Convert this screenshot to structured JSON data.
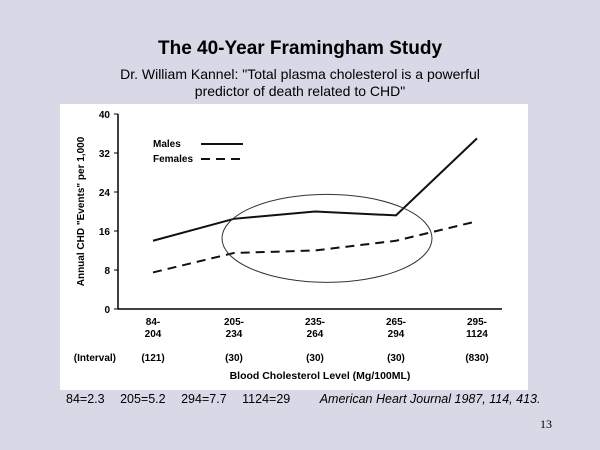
{
  "slide": {
    "title": "The 40-Year Framingham Study",
    "subtitle_line1": "Dr. William Kannel:  \"Total plasma cholesterol is a powerful",
    "subtitle_line2": "predictor of death related to CHD\"",
    "page_number": "13"
  },
  "footer": {
    "values": [
      "84=2.3",
      "205=5.2",
      "294=7.7",
      "1124=29"
    ],
    "citation": "American Heart Journal 1987, 114, 413."
  },
  "chart_data": {
    "type": "line",
    "categories": [
      "84-\n204",
      "205-\n234",
      "235-\n264",
      "265-\n294",
      "295-\n1124"
    ],
    "intervals": [
      "(121)",
      "(30)",
      "(30)",
      "(30)",
      "(830)"
    ],
    "interval_label": "(Interval)",
    "series": [
      {
        "name": "Males",
        "style": "solid",
        "x": [
          0,
          1,
          2,
          3,
          4
        ],
        "y": [
          14,
          18.5,
          20,
          19.2,
          35
        ]
      },
      {
        "name": "Females",
        "style": "dashed",
        "x": [
          0,
          1,
          2,
          3,
          4
        ],
        "y": [
          7.5,
          11.5,
          12,
          14,
          18
        ]
      }
    ],
    "xlabel": "Blood Cholesterol Level (Mg/100ML)",
    "ylabel": "Annual CHD \"Events\" per 1,000",
    "ylim": [
      0,
      40
    ],
    "yticks": [
      0,
      8,
      16,
      24,
      32,
      40
    ],
    "grid": false,
    "legend_position": "top-left",
    "annotation": "ellipse highlighting the 205–294 range"
  }
}
